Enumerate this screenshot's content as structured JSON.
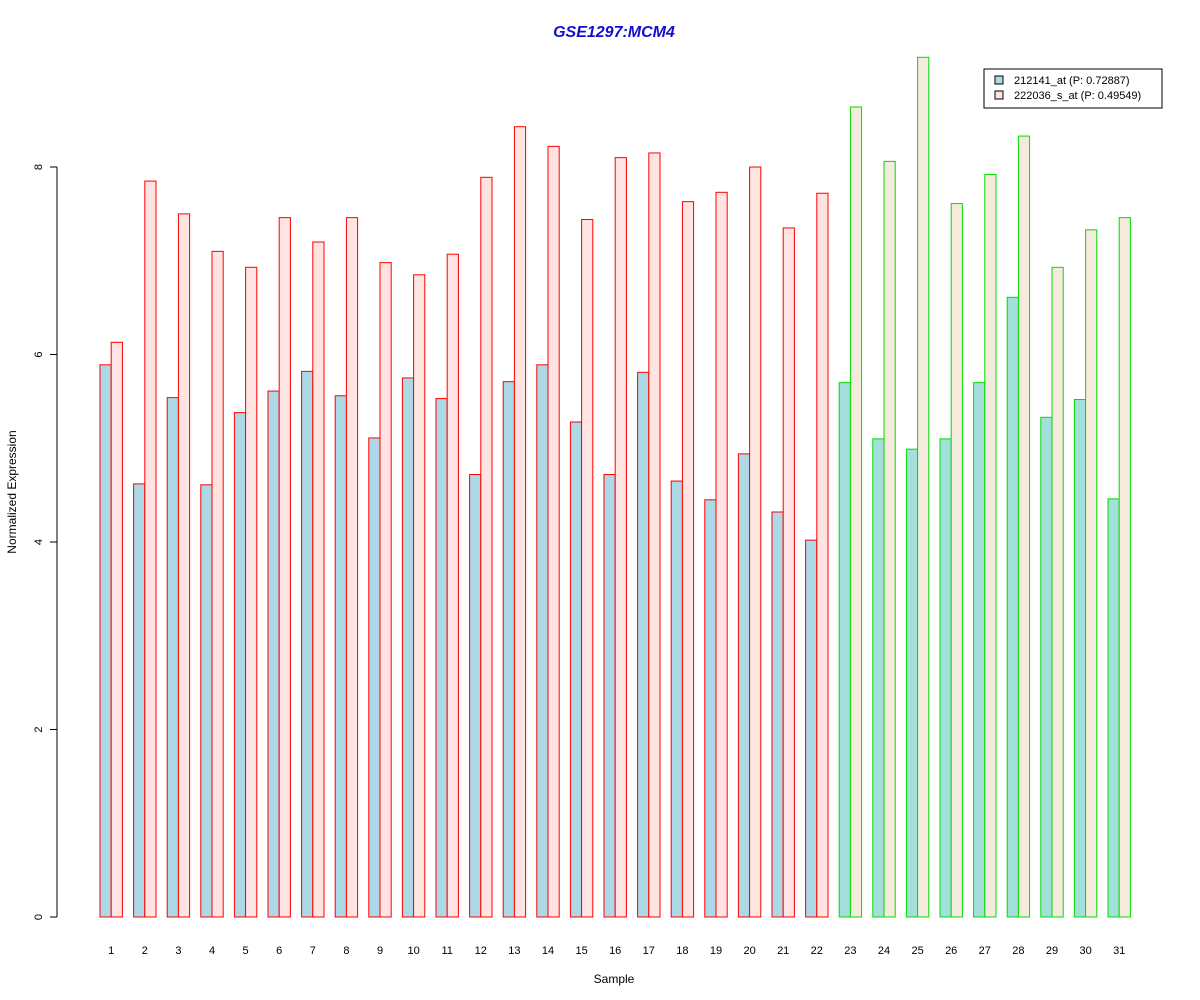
{
  "chart_data": {
    "type": "bar",
    "title": "GSE1297:MCM4",
    "xlabel": "Sample",
    "ylabel": "Normalized Expression",
    "ylim": [
      0,
      9.3
    ],
    "yticks": [
      0,
      2,
      4,
      6,
      8
    ],
    "grid": false,
    "legend_position": "top-right",
    "categories": [
      "1",
      "2",
      "3",
      "4",
      "5",
      "6",
      "7",
      "8",
      "9",
      "10",
      "11",
      "12",
      "13",
      "14",
      "15",
      "16",
      "17",
      "18",
      "19",
      "20",
      "21",
      "22",
      "23",
      "24",
      "25",
      "26",
      "27",
      "28",
      "29",
      "30",
      "31"
    ],
    "series": [
      {
        "name": "212141_at (P: 0.72887)",
        "values": [
          5.89,
          4.62,
          5.54,
          4.61,
          5.38,
          5.61,
          5.82,
          5.56,
          5.11,
          5.75,
          5.53,
          4.72,
          5.71,
          5.89,
          5.28,
          4.72,
          5.81,
          4.65,
          4.45,
          4.94,
          4.32,
          4.02,
          5.7,
          5.1,
          4.99,
          5.1,
          5.7,
          6.61,
          5.33,
          5.52,
          4.46
        ]
      },
      {
        "name": "222036_s_at (P: 0.49549)",
        "values": [
          6.13,
          7.85,
          7.5,
          7.1,
          6.93,
          7.46,
          7.2,
          7.46,
          6.98,
          6.85,
          7.07,
          7.89,
          8.43,
          8.22,
          7.44,
          8.1,
          8.15,
          7.63,
          7.73,
          8.0,
          7.35,
          7.72,
          8.64,
          8.06,
          9.17,
          7.61,
          7.92,
          8.33,
          6.93,
          7.33,
          7.46
        ]
      }
    ],
    "group_border_colors": [
      "#ff0000",
      "#00dd00"
    ],
    "group_split_after": 22,
    "fill_colors": {
      "series1_group1": "#add8e6",
      "series2_group1": "#ffe4e1",
      "series1_group2": "#a3e0dc",
      "series2_group2": "#f5ebdc"
    }
  }
}
